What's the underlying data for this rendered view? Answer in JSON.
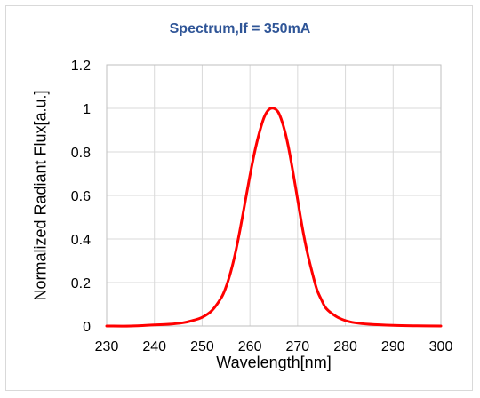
{
  "chart_data": {
    "type": "line",
    "title": "Spectrum,If = 350mA",
    "xlabel": "Wavelength[nm]",
    "ylabel": "Normalized Radiant Flux[a.u.]",
    "xlim": [
      230,
      300
    ],
    "ylim": [
      0,
      1.2
    ],
    "xticks": [
      "230",
      "240",
      "250",
      "260",
      "270",
      "280",
      "290",
      "300"
    ],
    "yticks": [
      "0",
      "0.2",
      "0.4",
      "0.6",
      "0.8",
      "1",
      "1.2"
    ],
    "grid": true,
    "legend": "none",
    "series": [
      {
        "color": "#ff0000",
        "x": [
          230,
          235,
          240,
          243,
          246,
          248,
          250,
          252,
          254,
          255,
          256,
          257,
          258,
          259,
          260,
          261,
          262,
          263,
          264,
          265,
          266,
          267,
          268,
          269,
          270,
          271,
          272,
          273,
          274,
          275,
          276,
          278,
          280,
          282,
          285,
          290,
          295,
          300
        ],
        "y": [
          0.0,
          0.0,
          0.005,
          0.008,
          0.015,
          0.025,
          0.04,
          0.07,
          0.13,
          0.18,
          0.25,
          0.34,
          0.45,
          0.57,
          0.69,
          0.8,
          0.89,
          0.96,
          0.995,
          1.0,
          0.98,
          0.92,
          0.83,
          0.71,
          0.58,
          0.45,
          0.34,
          0.25,
          0.17,
          0.12,
          0.08,
          0.045,
          0.025,
          0.015,
          0.008,
          0.003,
          0.001,
          0.0
        ]
      }
    ]
  }
}
